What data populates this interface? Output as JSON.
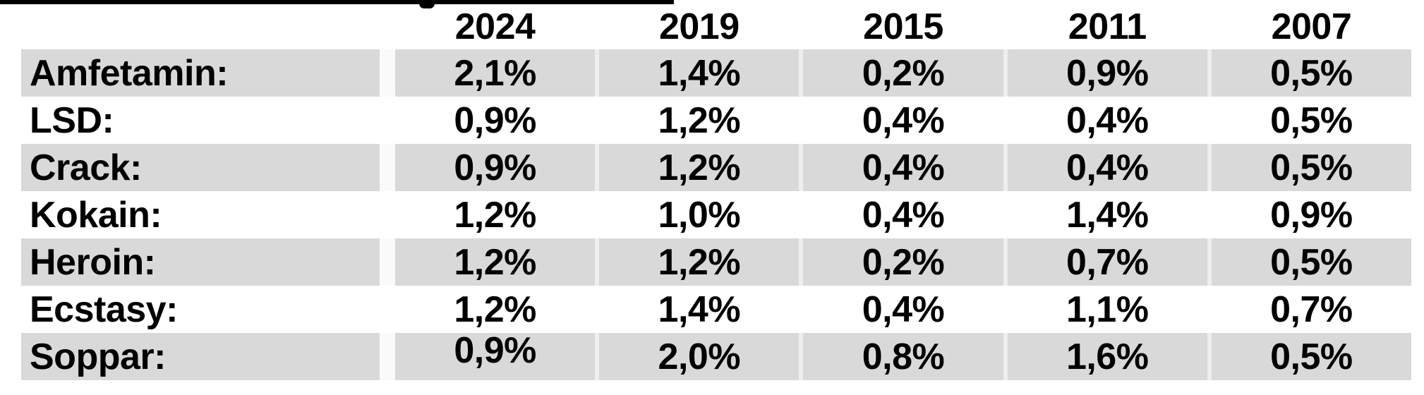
{
  "table": {
    "header": {
      "label": "",
      "years": [
        "2024",
        "2019",
        "2015",
        "2011",
        "2007"
      ]
    },
    "rows": [
      {
        "label": "Amfetamin:",
        "values": [
          "2,1%",
          "1,4%",
          "0,2%",
          "0,9%",
          "0,5%"
        ]
      },
      {
        "label": "LSD:",
        "values": [
          "0,9%",
          "1,2%",
          "0,4%",
          "0,4%",
          "0,5%"
        ]
      },
      {
        "label": "Crack:",
        "values": [
          "0,9%",
          "1,2%",
          "0,4%",
          "0,4%",
          "0,5%"
        ]
      },
      {
        "label": "Kokain:",
        "values": [
          "1,2%",
          "1,0%",
          "0,4%",
          "1,4%",
          "0,9%"
        ]
      },
      {
        "label": "Heroin:",
        "values": [
          "1,2%",
          "1,2%",
          "0,2%",
          "0,7%",
          "0,5%"
        ]
      },
      {
        "label": "Ecstasy:",
        "values": [
          "1,2%",
          "1,4%",
          "0,4%",
          "1,1%",
          "0,7%"
        ]
      },
      {
        "label": "Soppar:",
        "values": [
          "0,9%",
          "2,0%",
          "0,8%",
          "1,6%",
          "0,5%"
        ]
      }
    ]
  },
  "chart_data": {
    "type": "table",
    "title": "",
    "categories": [
      "2024",
      "2019",
      "2015",
      "2011",
      "2007"
    ],
    "series": [
      {
        "name": "Amfetamin",
        "values": [
          2.1,
          1.4,
          0.2,
          0.9,
          0.5
        ]
      },
      {
        "name": "LSD",
        "values": [
          0.9,
          1.2,
          0.4,
          0.4,
          0.5
        ]
      },
      {
        "name": "Crack",
        "values": [
          0.9,
          1.2,
          0.4,
          0.4,
          0.5
        ]
      },
      {
        "name": "Kokain",
        "values": [
          1.2,
          1.0,
          0.4,
          1.4,
          0.9
        ]
      },
      {
        "name": "Heroin",
        "values": [
          1.2,
          1.2,
          0.2,
          0.7,
          0.5
        ]
      },
      {
        "name": "Ecstasy",
        "values": [
          1.2,
          1.4,
          0.4,
          1.1,
          0.7
        ]
      },
      {
        "name": "Soppar",
        "values": [
          0.9,
          2.0,
          0.8,
          1.6,
          0.5
        ]
      }
    ],
    "unit": "%",
    "decimal_separator": ","
  },
  "colors": {
    "stripe": "#d9d9d9",
    "rule": "#000000",
    "text": "#000000",
    "background": "#ffffff"
  }
}
